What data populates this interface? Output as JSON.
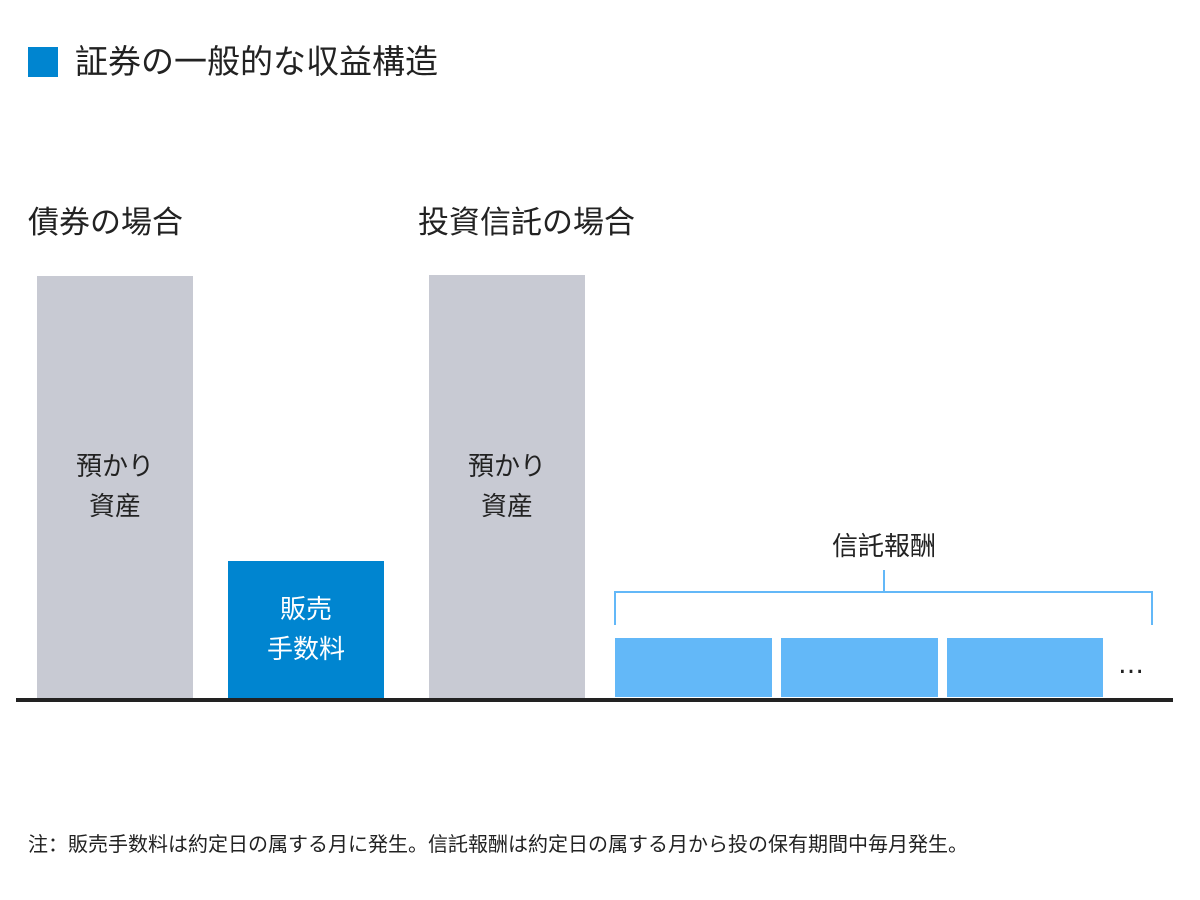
{
  "title": "証券の一般的な収益構造",
  "colors": {
    "accent": "#0085d0",
    "asset_gray": "#c8cad3",
    "fee_light_blue": "#63b8f8",
    "axis": "#222222"
  },
  "bond": {
    "heading": "債券の場合",
    "asset_bar": {
      "line1": "預かり",
      "line2": "資産"
    },
    "fee_bar": {
      "line1": "販売",
      "line2": "手数料"
    }
  },
  "fund": {
    "heading": "投資信託の場合",
    "asset_bar": {
      "line1": "預かり",
      "line2": "資産"
    },
    "trust_fee_label": "信託報酬",
    "ellipsis": "…"
  },
  "note": "注：販売手数料は約定日の属する月に発生。信託報酬は約定日の属する月から投の保有期間中毎月発生。"
}
